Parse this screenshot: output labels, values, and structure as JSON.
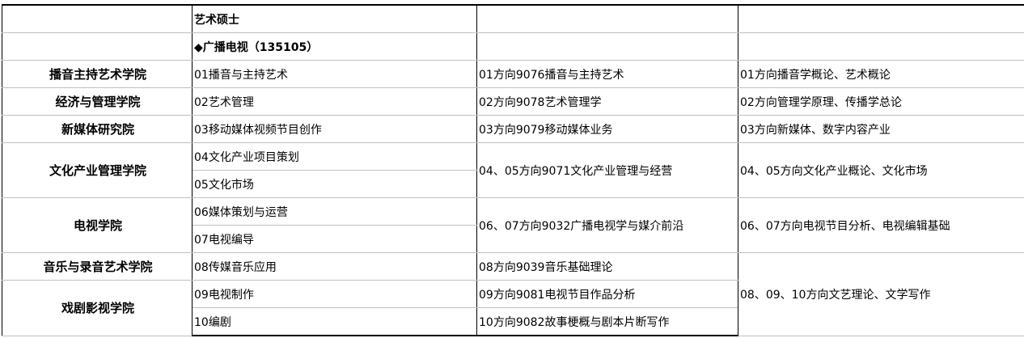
{
  "header": {
    "degree": "艺术硕士",
    "major": "◆广播电视（135105）"
  },
  "rows": {
    "r2": {
      "college": "播音主持艺术学院",
      "direction": "01播音与主持艺术",
      "exam1": "01方向9076播音与主持艺术",
      "exam2": "01方向播音学概论、艺术概论"
    },
    "r3": {
      "college": "经济与管理学院",
      "direction": "02艺术管理",
      "exam1": "02方向9078艺术管理学",
      "exam2": "02方向管理学原理、传播学总论"
    },
    "r4": {
      "college": "新媒体研究院",
      "direction": "03移动媒体视频节目创作",
      "exam1": "03方向9079移动媒体业务",
      "exam2": "03方向新媒体、数字内容产业"
    },
    "r5": {
      "college": "文化产业管理学院",
      "direction": "04文化产业项目策划",
      "direction_b": "05文化市场",
      "exam1": "04、05方向9071文化产业管理与经营",
      "exam2": "04、05方向文化产业概论、文化市场"
    },
    "r7": {
      "college": "电视学院",
      "direction": "06媒体策划与运营",
      "direction_b": "07电视编导",
      "exam1": "06、07方向9032广播电视学与媒介前沿",
      "exam2": "06、07方向电视节目分析、电视编辑基础"
    },
    "r9": {
      "college": "音乐与录音艺术学院",
      "direction": "08传媒音乐应用",
      "exam1": "08方向9039音乐基础理论",
      "exam2": "08、09、10方向文艺理论、文学写作"
    },
    "r10": {
      "college": "戏剧影视学院",
      "direction": "09电视制作",
      "direction_b": "10编剧",
      "exam1": "09方向9081电视节目作品分析",
      "exam1_b": "10方向9082故事梗概与剧本片断写作"
    }
  }
}
